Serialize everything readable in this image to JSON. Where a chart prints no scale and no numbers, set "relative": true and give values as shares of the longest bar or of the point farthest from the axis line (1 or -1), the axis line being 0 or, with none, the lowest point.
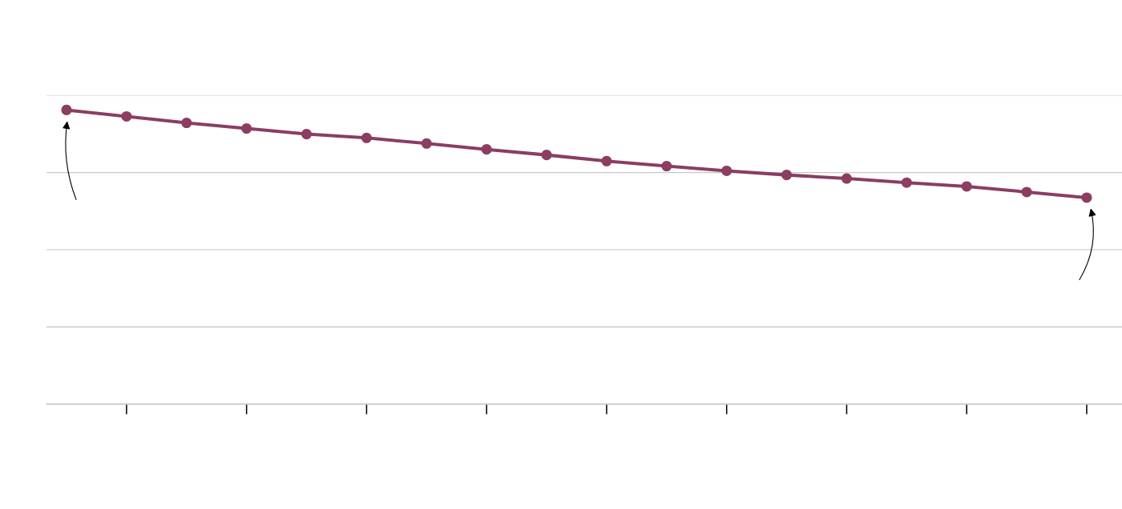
{
  "chart_data": {
    "type": "line",
    "categories": [
      null,
      null,
      null,
      null,
      null,
      null,
      null,
      null,
      null,
      null,
      null,
      null,
      null,
      null,
      null,
      null,
      null,
      null
    ],
    "series": [
      {
        "color": "#8b3d62",
        "values": [
          1.0,
          0.978,
          0.956,
          0.937,
          0.918,
          0.905,
          0.886,
          0.866,
          0.847,
          0.826,
          0.809,
          0.793,
          0.779,
          0.767,
          0.753,
          0.74,
          0.721,
          0.702
        ]
      }
    ],
    "relative": true,
    "grid": "y",
    "marker": "circle",
    "line_style": "solid"
  }
}
